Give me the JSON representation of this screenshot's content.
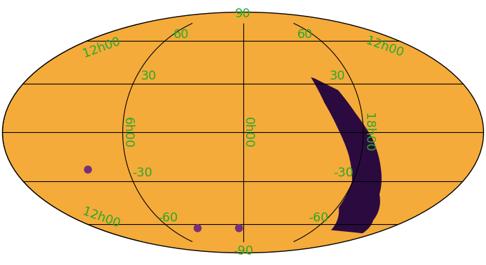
{
  "chart_data": {
    "type": "skymap",
    "color": "#f4ab3a",
    "xlim": [
      0,
      24
    ],
    "ylim": [
      -90,
      90
    ],
    "xticks": [
      {
        "value": 0,
        "label": "0h00"
      },
      {
        "value": 6,
        "label": "6h00"
      },
      {
        "value": 12,
        "label": "12h00"
      },
      {
        "value": 18,
        "label": "18h00"
      }
    ],
    "yticks": [
      -90,
      -60,
      -30,
      30,
      60,
      90
    ],
    "grid": true,
    "series": [
      {
        "type": "area",
        "color": "#2b0b3f",
        "x": [
          20.0,
          18.93,
          18.32,
          17.53,
          16.8,
          16.07,
          14.5,
          13.1,
          16.5,
          17.9,
          18.05,
          18.63,
          19.25,
          19.8,
          20.19
        ],
        "values": [
          33.5,
          26.0,
          11.9,
          -3.9,
          -21.9,
          -38.6,
          -57.0,
          -67.4,
          -64.7,
          -47.5,
          -30.1,
          -13.8,
          2.0,
          17.8,
          34.3
        ]
      },
      {
        "type": "scatter",
        "color": "#7a2f78",
        "x": [
          8.13,
          3.73,
          0.33
        ],
        "values": [
          -22.7,
          -63.1,
          -63.1
        ]
      }
    ]
  }
}
